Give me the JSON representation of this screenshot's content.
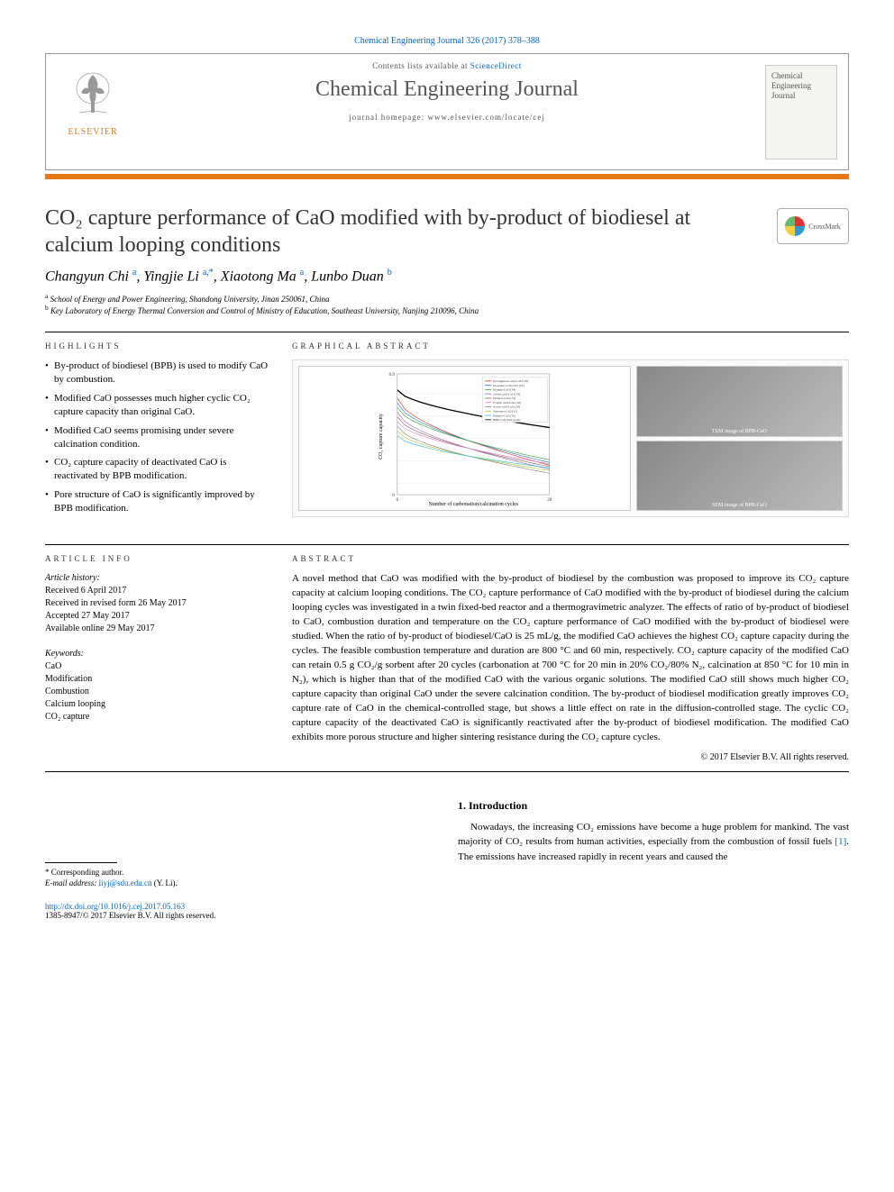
{
  "citation": "Chemical Engineering Journal 326 (2017) 378–388",
  "header": {
    "contents_prefix": "Contents lists available at ",
    "contents_link": "ScienceDirect",
    "journal_name": "Chemical Engineering Journal",
    "homepage_prefix": "journal homepage: ",
    "homepage_url": "www.elsevier.com/locate/cej",
    "publisher": "ELSEVIER",
    "cover_title": "Chemical Engineering Journal"
  },
  "crossmark": "CrossMark",
  "title": "CO₂ capture performance of CaO modified with by-product of biodiesel at calcium looping conditions",
  "authors_html": "Changyun Chi <sup>a</sup>, Yingjie Li <sup>a,*</sup>, Xiaotong Ma <sup>a</sup>, Lunbo Duan <sup>b</sup>",
  "affiliations": [
    "a School of Energy and Power Engineering, Shandong University, Jinan 250061, China",
    "b Key Laboratory of Energy Thermal Conversion and Control of Ministry of Education, Southeast University, Nanjing 210096, China"
  ],
  "highlights_head": "HIGHLIGHTS",
  "highlights": [
    "By-product of biodiesel (BPB) is used to modify CaO by combustion.",
    "Modified CaO possesses much higher cyclic CO₂ capture capacity than original CaO.",
    "Modified CaO seems promising under severe calcination condition.",
    "CO₂ capture capacity of deactivated CaO is reactivated by BPB modification.",
    "Pore structure of CaO is significantly improved by BPB modification."
  ],
  "graphical_head": "GRAPHICAL ABSTRACT",
  "ga": {
    "chart": {
      "type": "line",
      "xlabel": "Number of carbonation/calcination cycles",
      "ylabel": "CO₂ capture capacity",
      "xlim": [
        0,
        20
      ],
      "ylim": [
        0,
        0.9
      ],
      "xtick_step": 5,
      "ytick_step": 0.1,
      "series_count": 10,
      "legend_items": [
        "Pyroligneous acid-CaO [18]",
        "Propionic acid-CaO [18]",
        "Manure-CaO [34]",
        "Oxalic acid-CaO [33]",
        "Ethanol-CaO [19]",
        "Formic acid-CaO [18]",
        "Acetic acid-CaO [18]",
        "Seawater-CaO [31]",
        "Ethanol-CaO [35]",
        "BPB-CaO (this work)"
      ],
      "series_colors": [
        "#d62728",
        "#1f77b4",
        "#2ca02c",
        "#9467bd",
        "#8c564b",
        "#e377c2",
        "#7f7f7f",
        "#bcbd22",
        "#17becf",
        "#000000"
      ],
      "bpb_cao_points_x": [
        1,
        2,
        3,
        5,
        7,
        10,
        13,
        16,
        20
      ],
      "bpb_cao_points_y": [
        0.78,
        0.75,
        0.72,
        0.68,
        0.63,
        0.58,
        0.55,
        0.52,
        0.5
      ],
      "background_color": "#ffffff",
      "grid_color": "#e0e0e0"
    },
    "tem_label": "TEM image of BPB-CaO",
    "sem_label": "SEM image of BPB-CaO"
  },
  "article_info_head": "ARTICLE INFO",
  "article_history_label": "Article history:",
  "article_history": [
    "Received 6 April 2017",
    "Received in revised form 26 May 2017",
    "Accepted 27 May 2017",
    "Available online 29 May 2017"
  ],
  "keywords_label": "Keywords:",
  "keywords": [
    "CaO",
    "Modification",
    "Combustion",
    "Calcium looping",
    "CO₂ capture"
  ],
  "abstract_head": "ABSTRACT",
  "abstract_text": "A novel method that CaO was modified with the by-product of biodiesel by the combustion was proposed to improve its CO₂ capture capacity at calcium looping conditions. The CO₂ capture performance of CaO modified with the by-product of biodiesel during the calcium looping cycles was investigated in a twin fixed-bed reactor and a thermogravimetric analyzer. The effects of ratio of by-product of biodiesel to CaO, combustion duration and temperature on the CO₂ capture performance of CaO modified with the by-product of biodiesel were studied. When the ratio of by-product of biodiesel/CaO is 25 mL/g, the modified CaO achieves the highest CO₂ capture capacity during the cycles. The feasible combustion temperature and duration are 800 °C and 60 min, respectively. CO₂ capture capacity of the modified CaO can retain 0.5 g CO₂/g sorbent after 20 cycles (carbonation at 700 °C for 20 min in 20% CO₂/80% N₂, calcination at 850 °C for 10 min in N₂), which is higher than that of the modified CaO with the various organic solutions. The modified CaO still shows much higher CO₂ capture capacity than original CaO under the severe calcination condition. The by-product of biodiesel modification greatly improves CO₂ capture rate of CaO in the chemical-controlled stage, but shows a little effect on rate in the diffusion-controlled stage. The cyclic CO₂ capture capacity of the deactivated CaO is significantly reactivated after the by-product of biodiesel modification. The modified CaO exhibits more porous structure and higher sintering resistance during the CO₂ capture cycles.",
  "copyright": "© 2017 Elsevier B.V. All rights reserved.",
  "intro_head": "1. Introduction",
  "intro_text": "Nowadays, the increasing CO₂ emissions have become a huge problem for mankind. The vast majority of CO₂ results from human activities, especially from the combustion of fossil fuels [1]. The emissions have increased rapidly in recent years and caused the",
  "corresponding_label": "* Corresponding author.",
  "email_label": "E-mail address: ",
  "email": "liyj@sdu.edu.cn",
  "email_suffix": " (Y. Li).",
  "doi_url": "http://dx.doi.org/10.1016/j.cej.2017.05.163",
  "issn_line": "1385-8947/© 2017 Elsevier B.V. All rights reserved.",
  "ref_link": "[1]",
  "colors": {
    "orange": "#e77817",
    "link": "#0066cc",
    "text": "#000000"
  }
}
